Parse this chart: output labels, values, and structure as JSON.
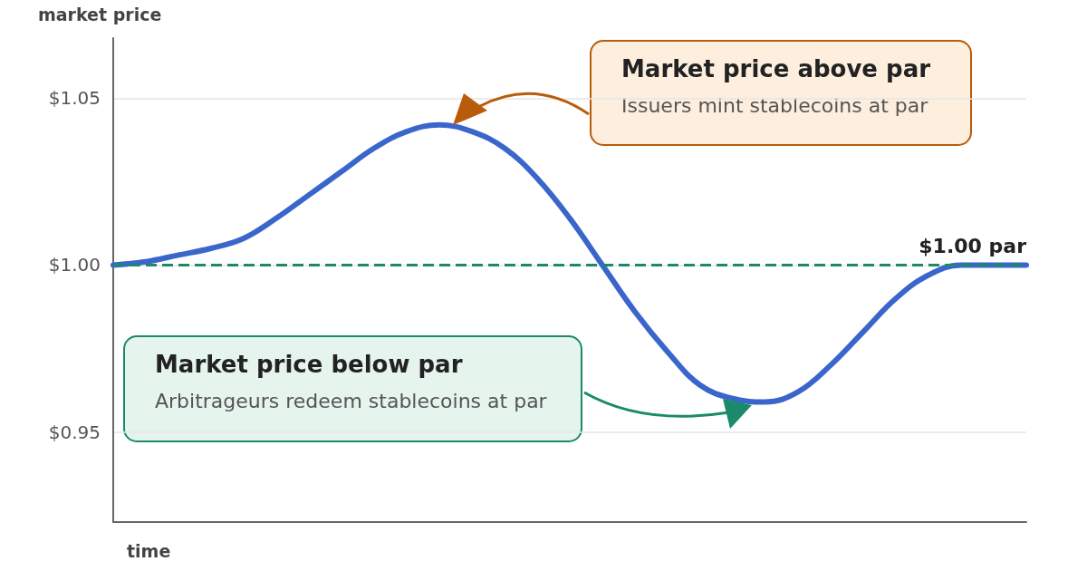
{
  "chart_data": {
    "type": "line",
    "ylabel": "market price",
    "xlabel": "time",
    "categories": [
      null,
      null,
      null,
      null,
      null,
      null,
      null,
      null,
      null,
      null,
      null,
      null,
      null,
      null,
      null,
      null,
      null,
      null,
      null,
      null,
      null,
      null,
      null,
      null,
      null,
      null,
      null,
      null,
      null
    ],
    "series": [
      {
        "color": "#3a66cc",
        "values": [
          1.0,
          1.001,
          1.003,
          1.005,
          1.008,
          1.014,
          1.021,
          1.028,
          1.035,
          1.04,
          1.042,
          1.04,
          1.035,
          1.026,
          1.014,
          1.0,
          0.986,
          0.974,
          0.964,
          0.96,
          0.959,
          0.962,
          0.97,
          0.98,
          0.99,
          0.997,
          1.0,
          1.0,
          1.0
        ]
      }
    ],
    "ylim": [
      0.923,
      1.068
    ],
    "yticks": [
      {
        "value": 0.95,
        "label": "$0.95"
      },
      {
        "value": 1.0,
        "label": "$1.00"
      },
      {
        "value": 1.05,
        "label": "$1.05"
      }
    ],
    "tick_labels": "y",
    "grid": "y",
    "marker": "none",
    "line_style": "solid",
    "ref_lines": [
      {
        "axis": "y",
        "value": 1.0,
        "label": "$1.00 par",
        "color": "#1a8a6a",
        "line_style": "dashed"
      }
    ],
    "annotations": [
      "Market price above par",
      "Issuers mint stablecoins at par",
      "Market price below par",
      "Arbitrageurs redeem stablecoins at par"
    ]
  }
}
